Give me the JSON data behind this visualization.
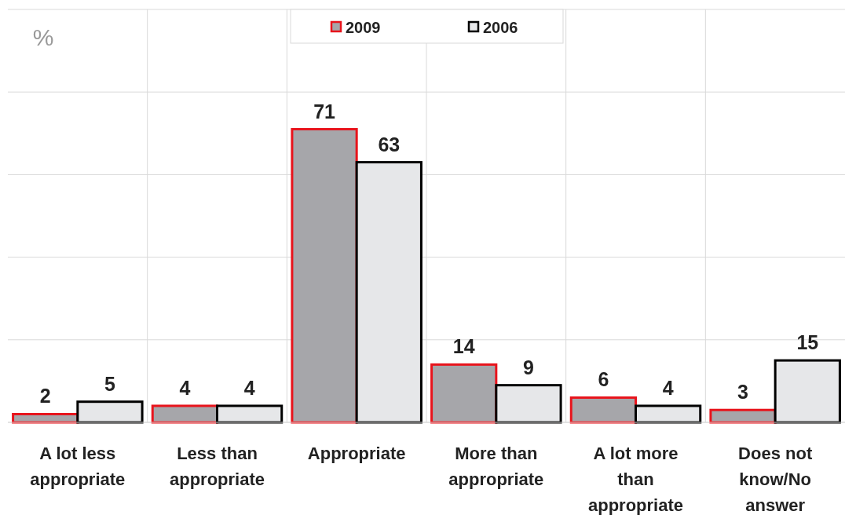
{
  "chart_data": {
    "type": "bar",
    "ylabel": "%",
    "categories": [
      "A lot less appropriate",
      "Less than appropriate",
      "Appropriate",
      "More than appropriate",
      "A lot more than appropriate",
      "Does not know/No answer"
    ],
    "series": [
      {
        "name": "2009",
        "color": "#a6a6aa",
        "values": [
          2,
          4,
          71,
          14,
          6,
          3
        ]
      },
      {
        "name": "2006",
        "color": "#e6e7e9",
        "values": [
          5,
          4,
          63,
          9,
          4,
          15
        ]
      }
    ],
    "ylim": [
      0,
      100
    ],
    "yticks": [
      {
        "value": 0,
        "label": null
      },
      {
        "value": 20,
        "label": null
      },
      {
        "value": 40,
        "label": null
      },
      {
        "value": 60,
        "label": null
      },
      {
        "value": 80,
        "label": null
      },
      {
        "value": 100,
        "label": null
      }
    ],
    "tick_labels": "x",
    "grid": true,
    "legend": "top",
    "data_labels": true
  }
}
